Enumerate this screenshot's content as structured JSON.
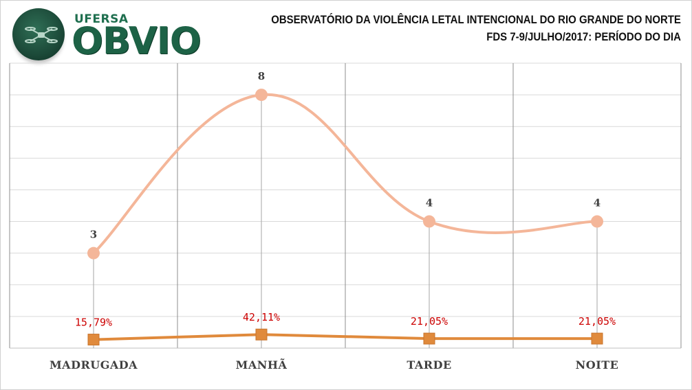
{
  "header": {
    "logo_top": "UFERSA",
    "logo_main": "OBVIO",
    "title_line1": "OBSERVATÓRIO DA VIOLÊNCIA LETAL INTENCIONAL DO RIO GRANDE DO NORTE",
    "title_line2": "FDS 7-9/JULHO/2017:  PERÍODO DO DIA"
  },
  "colors": {
    "count_line": "#f4b699",
    "percent_line": "#e08a3c",
    "percent_label": "#cc0000",
    "count_label": "#404040"
  },
  "chart_data": {
    "type": "line",
    "categories": [
      "MADRUGADA",
      "MANHÃ",
      "TARDE",
      "NOITE"
    ],
    "series": [
      {
        "values": [
          3,
          8,
          4,
          4
        ],
        "labels": [
          "3",
          "8",
          "4",
          "4"
        ],
        "style": "smooth"
      },
      {
        "values": [
          15.79,
          42.11,
          21.05,
          21.05
        ],
        "labels": [
          "15,79%",
          "42,11%",
          "21,05%",
          "21,05%"
        ],
        "style": "straight"
      }
    ],
    "ylim": [
      0,
      9
    ],
    "grid": true,
    "legend": "none"
  }
}
